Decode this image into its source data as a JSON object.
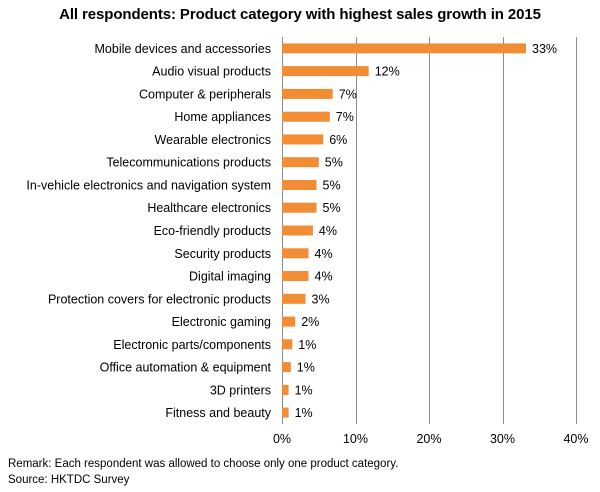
{
  "chart_data": {
    "type": "bar",
    "orientation": "horizontal",
    "title": "All respondents: Product category with highest sales growth in 2015",
    "categories": [
      "Mobile devices and accessories",
      "Audio visual products",
      "Computer & peripherals",
      "Home appliances",
      "Wearable electronics",
      "Telecommunications products",
      "In-vehicle electronics and navigation system",
      "Healthcare electronics",
      "Eco-friendly products",
      "Security products",
      "Digital imaging",
      "Protection covers for electronic products",
      "Electronic gaming",
      "Electronic parts/components",
      "Office automation & equipment",
      "3D printers",
      "Fitness and beauty"
    ],
    "values": [
      33.2,
      11.8,
      6.9,
      6.5,
      5.6,
      5.0,
      4.7,
      4.7,
      4.2,
      3.6,
      3.6,
      3.2,
      1.8,
      1.4,
      1.2,
      0.9,
      0.9
    ],
    "value_labels": [
      "33%",
      "12%",
      "7%",
      "7%",
      "6%",
      "5%",
      "5%",
      "5%",
      "4%",
      "4%",
      "4%",
      "3%",
      "2%",
      "1%",
      "1%",
      "1%",
      "1%"
    ],
    "xlim": [
      0,
      40
    ],
    "x_ticks": [
      0,
      10,
      20,
      30,
      40
    ],
    "x_tick_labels": [
      "0%",
      "10%",
      "20%",
      "30%",
      "40%"
    ],
    "xlabel": "",
    "ylabel": "",
    "grid": "vertical",
    "legend": "none",
    "bar_color": "#F28C35",
    "grid_color": "#8C8C8C"
  },
  "footer": {
    "remark": "Remark: Each respondent was allowed to choose only one product category.",
    "source": "Source: HKTDC Survey"
  }
}
